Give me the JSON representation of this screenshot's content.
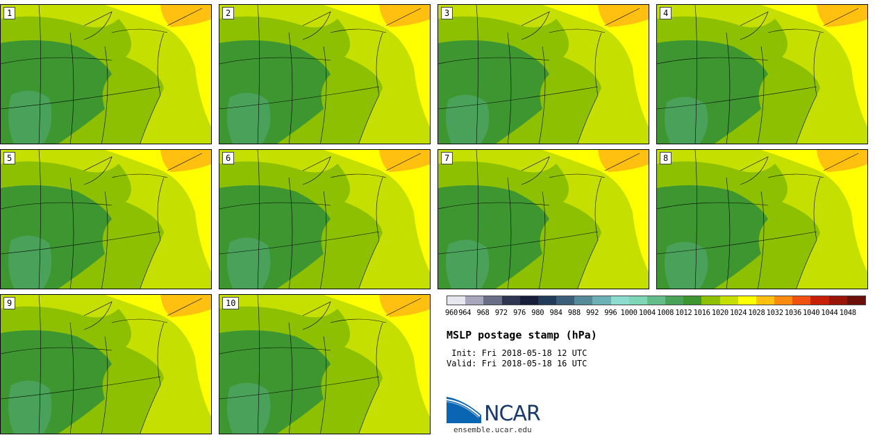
{
  "panels": [
    {
      "label": "1"
    },
    {
      "label": "2"
    },
    {
      "label": "3"
    },
    {
      "label": "4"
    },
    {
      "label": "5"
    },
    {
      "label": "6"
    },
    {
      "label": "7"
    },
    {
      "label": "8"
    },
    {
      "label": "9"
    },
    {
      "label": "10"
    }
  ],
  "colorbar": {
    "colors": [
      "#e6e6ee",
      "#a6a6bc",
      "#6a6e86",
      "#2e3550",
      "#161e3a",
      "#223a5a",
      "#3d5e78",
      "#558a98",
      "#6ab0b4",
      "#8edcd0",
      "#7ed6b6",
      "#64bc88",
      "#4aa25a",
      "#3e9630",
      "#8cc000",
      "#c5e000",
      "#ffff00",
      "#ffc010",
      "#ff8a10",
      "#f05010",
      "#c82008",
      "#9a1408",
      "#6a1008"
    ],
    "ticks": [
      "960",
      "964",
      "968",
      "972",
      "976",
      "980",
      "984",
      "988",
      "992",
      "996",
      "1000",
      "1004",
      "1008",
      "1012",
      "1016",
      "1020",
      "1024",
      "1028",
      "1032",
      "1036",
      "1040",
      "1044",
      "1048"
    ]
  },
  "title": "MSLP postage stamp (hPa)",
  "init": " Init: Fri 2018-05-18 12 UTC",
  "valid": "Valid: Fri 2018-05-18 16 UTC",
  "logo": {
    "text": "NCAR",
    "url": "ensemble.ucar.edu"
  }
}
